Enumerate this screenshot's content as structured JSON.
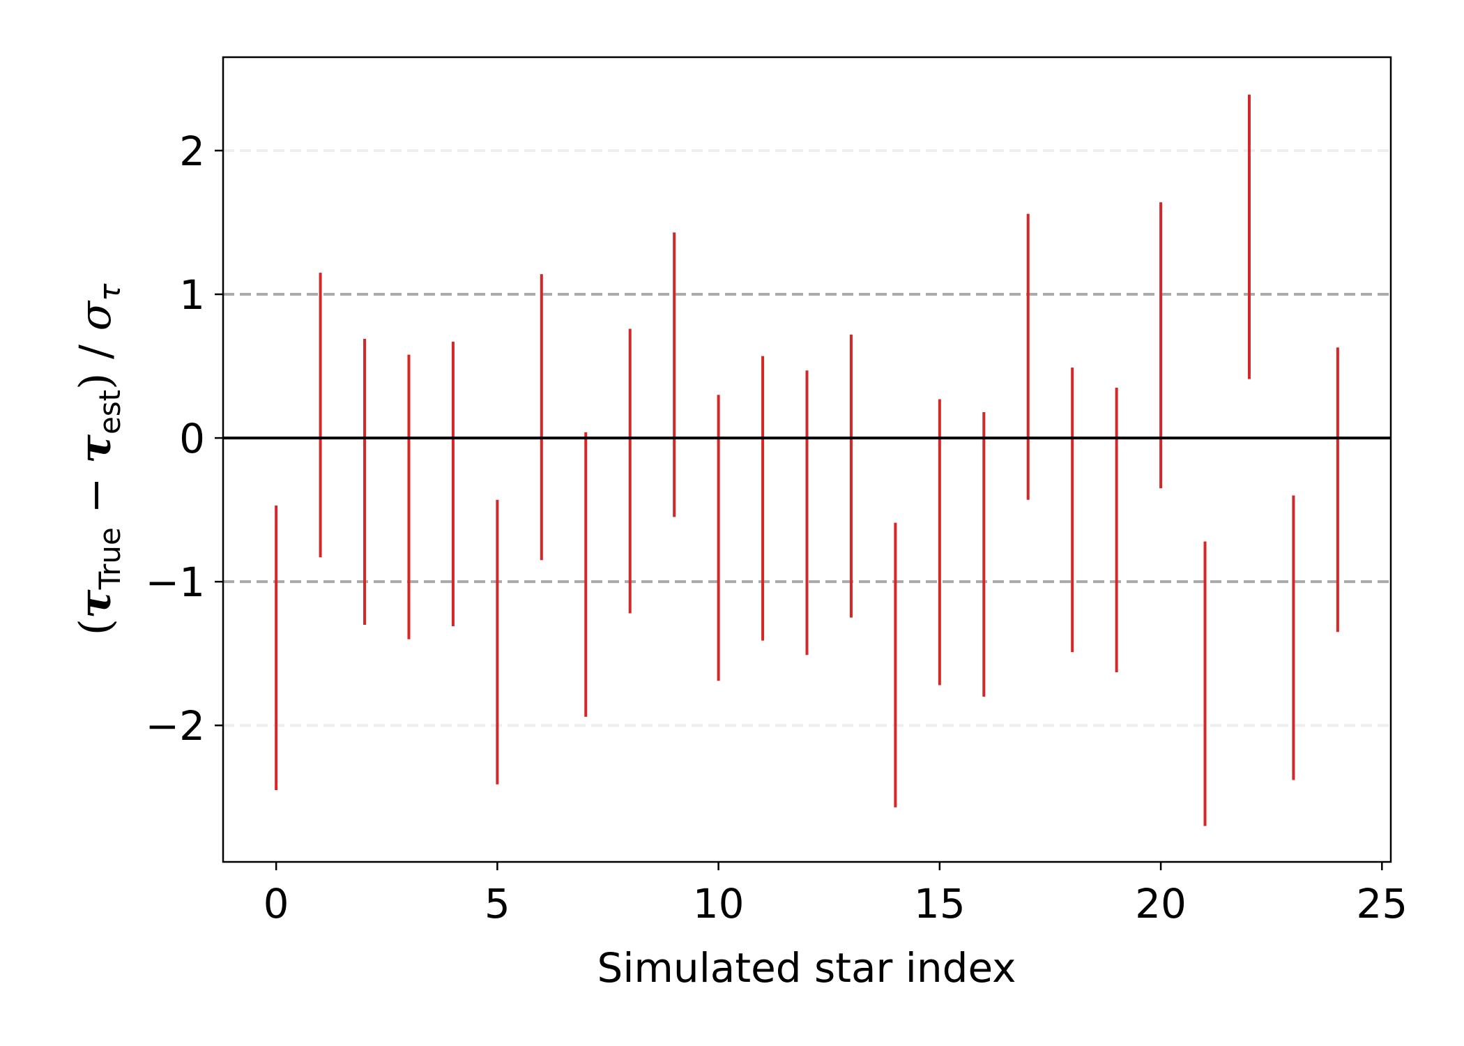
{
  "chart_data": {
    "type": "errorbar",
    "xlabel": "Simulated star index",
    "ylabel": {
      "open": "(",
      "tau1": "τ",
      "sub1": "True",
      "minus": " − ",
      "tau2": "τ",
      "sub2": "est",
      "close": ") / ",
      "sigma": "σ",
      "sigma_sub": "τ"
    },
    "xlim": [
      -1.2,
      25.2
    ],
    "ylim": [
      -2.95,
      2.65
    ],
    "xticks": [
      0,
      5,
      10,
      15,
      20,
      25
    ],
    "xtick_labels": [
      "0",
      "5",
      "10",
      "15",
      "20",
      "25"
    ],
    "yticks": [
      -2,
      -1,
      0,
      1,
      2
    ],
    "ytick_labels": [
      "−2",
      "−1",
      "0",
      "1",
      "2"
    ],
    "reference_lines": [
      {
        "y": 0,
        "style": "solid",
        "color": "#000000"
      },
      {
        "y": 1,
        "style": "dashed",
        "color": "#aaaaaa"
      },
      {
        "y": -1,
        "style": "dashed",
        "color": "#aaaaaa"
      },
      {
        "y": 2,
        "style": "dashed",
        "color": "#eeeeee"
      },
      {
        "y": -2,
        "style": "dashed",
        "color": "#eeeeee"
      }
    ],
    "bar_color": "#d62728",
    "series": [
      {
        "x": [
          0,
          1,
          2,
          3,
          4,
          5,
          6,
          7,
          8,
          9,
          10,
          11,
          12,
          13,
          14,
          15,
          16,
          17,
          18,
          19,
          20,
          21,
          22,
          23,
          24
        ],
        "low": [
          -2.45,
          -0.83,
          -1.3,
          -1.4,
          -1.31,
          -2.41,
          -0.85,
          -1.94,
          -1.22,
          -0.55,
          -1.69,
          -1.41,
          -1.51,
          -1.25,
          -2.57,
          -1.72,
          -1.8,
          -0.43,
          -1.49,
          -1.63,
          -0.35,
          -2.7,
          0.41,
          -2.38,
          -1.35
        ],
        "high": [
          -0.47,
          1.15,
          0.69,
          0.58,
          0.67,
          -0.43,
          1.14,
          0.04,
          0.76,
          1.43,
          0.3,
          0.57,
          0.47,
          0.72,
          -0.59,
          0.27,
          0.18,
          1.56,
          0.49,
          0.35,
          1.64,
          -0.72,
          2.39,
          -0.4,
          0.63
        ]
      }
    ]
  }
}
